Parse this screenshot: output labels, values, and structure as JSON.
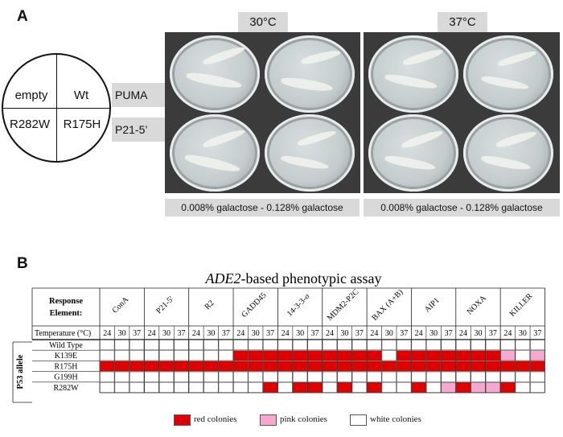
{
  "panel_a": {
    "letter": "A",
    "temperatures": [
      "30°C",
      "37°C"
    ],
    "circle": {
      "top_left": "empty",
      "top_right": "Wt",
      "bottom_left": "R282W",
      "bottom_right": "R175H"
    },
    "rows": [
      "PUMA",
      "P21-5’"
    ],
    "galactose_labels": [
      "0.008% galactose  -    0.128% galactose",
      "0.008% galactose  -    0.128% galactose"
    ]
  },
  "panel_b": {
    "letter": "B",
    "title_italic": "ADE2",
    "title_rest": "-based phenotypic assay",
    "response_element_label": "Response Element:",
    "temperature_label": "Temperature (°C)",
    "p53_label": "P53 allele",
    "response_elements": [
      "ConA",
      "P21-5'",
      "R2",
      "GADD45",
      "14-3-3-σ",
      "MDM2-P2C",
      "BAX (A+B)",
      "AIP1",
      "NOXA",
      "KILLER"
    ],
    "temperatures": [
      "24",
      "30",
      "37"
    ],
    "alleles": [
      "Wild Type",
      "K139E",
      "R175H",
      "G199H",
      "R282W"
    ],
    "colors": {
      "r": "#e00000",
      "p": "#f7a8cf",
      "w": "#ffffff"
    },
    "grid": [
      "wwwwwwwwwwwwwwwwwwwwwwwwwwwwww",
      "wwwwwwwwwrrrrrrrrrrwrrrrrrrpwp",
      "rrrrrrrrrrrrrrrrrrrrrrrrrrrrrr",
      "wwwwwwwwwwwwwwwwwwwwwwwwwwwwww",
      "wwwwwwwwwwwrwrrwrwrwwrwprpprww"
    ],
    "legend": [
      {
        "key": "r",
        "label": "red colonies"
      },
      {
        "key": "p",
        "label": "pink colonies"
      },
      {
        "key": "w",
        "label": "white colonies"
      }
    ]
  }
}
